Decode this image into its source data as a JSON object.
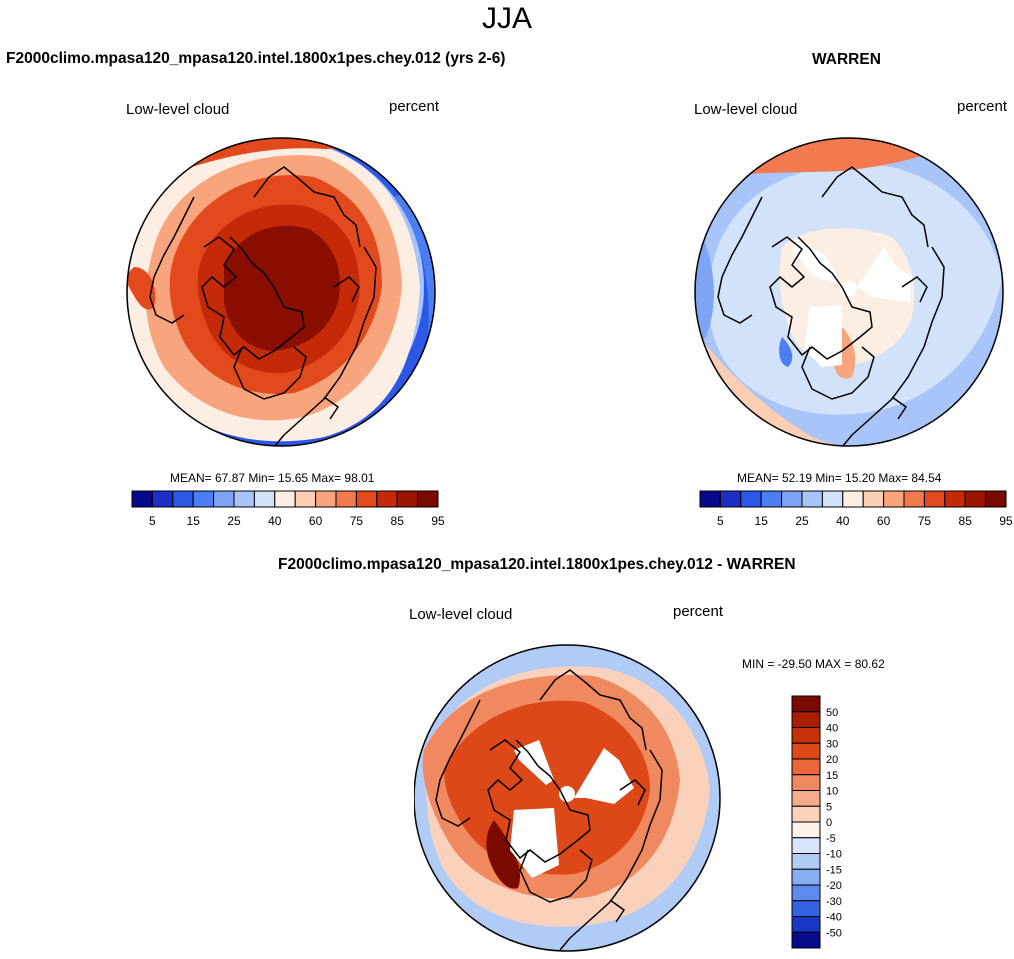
{
  "main_title": "JJA",
  "panels": [
    {
      "title": "F2000climo.mpasa120_mpasa120.intel.1800x1pes.chey.012 (yrs 2-6)",
      "left_label": "Low-level cloud",
      "right_label": "percent",
      "stats": "MEAN=  67.87  Min=  15.65  Max=  98.01"
    },
    {
      "title": "WARREN",
      "left_label": "Low-level cloud",
      "right_label": "percent",
      "stats": "MEAN=  52.19  Min=  15.20  Max=  84.54"
    },
    {
      "title": "F2000climo.mpasa120_mpasa120.intel.1800x1pes.chey.012 - WARREN",
      "left_label": "Low-level cloud",
      "right_label": "percent",
      "stats": "MIN = -29.50 MAX =  80.62"
    }
  ],
  "chart_data": [
    {
      "type": "heatmap",
      "projection": "north polar stereographic",
      "title": "F2000climo.mpasa120_mpasa120.intel.1800x1pes.chey.012 (yrs 2-6)",
      "variable": "Low-level cloud",
      "units": "percent",
      "mean": 67.87,
      "min": 15.65,
      "max": 98.01,
      "colorbar": {
        "orientation": "horizontal",
        "tick_labels": [
          "5",
          "15",
          "25",
          "40",
          "60",
          "75",
          "85",
          "95"
        ],
        "colors": [
          "#08088c",
          "#1c30c8",
          "#2c58e8",
          "#4a7ef2",
          "#7ea4f5",
          "#a8c4f8",
          "#d2e2fa",
          "#fdeee4",
          "#fcceb4",
          "#f8a47c",
          "#f27a4e",
          "#e24a1e",
          "#c42a08",
          "#9a1500",
          "#7a0a00"
        ]
      }
    },
    {
      "type": "heatmap",
      "projection": "north polar stereographic",
      "title": "WARREN",
      "variable": "Low-level cloud",
      "units": "percent",
      "mean": 52.19,
      "min": 15.2,
      "max": 84.54,
      "colorbar": {
        "orientation": "horizontal",
        "tick_labels": [
          "5",
          "15",
          "25",
          "40",
          "60",
          "75",
          "85",
          "95"
        ],
        "colors": [
          "#08088c",
          "#1c30c8",
          "#2c58e8",
          "#4a7ef2",
          "#7ea4f5",
          "#a8c4f8",
          "#d2e2fa",
          "#fdeee4",
          "#fcceb4",
          "#f8a47c",
          "#f27a4e",
          "#e24a1e",
          "#c42a08",
          "#9a1500",
          "#7a0a00"
        ]
      }
    },
    {
      "type": "heatmap",
      "projection": "north polar stereographic",
      "title": "F2000climo.mpasa120_mpasa120.intel.1800x1pes.chey.012 - WARREN",
      "variable": "Low-level cloud",
      "units": "percent",
      "min": -29.5,
      "max": 80.62,
      "colorbar": {
        "orientation": "vertical",
        "tick_labels": [
          "50",
          "40",
          "30",
          "20",
          "15",
          "10",
          "5",
          "0",
          "-5",
          "-10",
          "-15",
          "-20",
          "-30",
          "-40",
          "-50"
        ],
        "colors": [
          "#7a0a00",
          "#a81e04",
          "#c8320a",
          "#dc4818",
          "#ea6638",
          "#f08860",
          "#f5ac8c",
          "#fad2bc",
          "#fdf0e8",
          "#d8e6fc",
          "#b0ccf6",
          "#88aef2",
          "#5c8aee",
          "#3462e0",
          "#1838c4",
          "#0a0a8c"
        ]
      }
    }
  ]
}
